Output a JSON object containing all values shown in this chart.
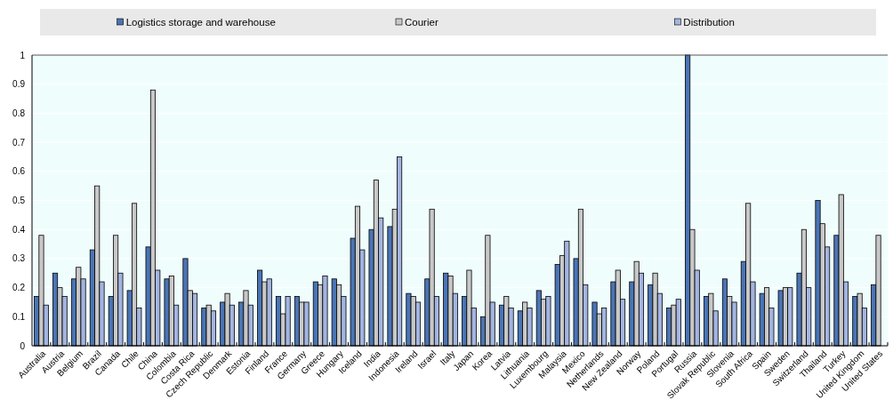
{
  "chart_data": {
    "type": "bar",
    "categories": [
      "Australia",
      "Austria",
      "Belgium",
      "Brazil",
      "Canada",
      "Chile",
      "China",
      "Colombia",
      "Costa Rica",
      "Czech Republic",
      "Denmark",
      "Estonia",
      "Finland",
      "France",
      "Germany",
      "Greece",
      "Hungary",
      "Iceland",
      "India",
      "Indonesia",
      "Ireland",
      "Israel",
      "Italy",
      "Japan",
      "Korea",
      "Latvia",
      "Lithuania",
      "Luxembourg",
      "Malaysia",
      "Mexico",
      "Netherlands",
      "New Zealand",
      "Norway",
      "Poland",
      "Portugal",
      "Russia",
      "Slovak Republic",
      "Slovenia",
      "South Africa",
      "Spain",
      "Sweden",
      "Switzerland",
      "Thailand",
      "Turkey",
      "United Kingdom",
      "United States"
    ],
    "series": [
      {
        "name": "Logistics storage and warehouse",
        "color": "#4a74b5",
        "values": [
          0.17,
          0.25,
          0.23,
          0.33,
          0.17,
          0.19,
          0.34,
          0.23,
          0.3,
          0.13,
          0.15,
          0.15,
          0.26,
          0.17,
          0.17,
          0.22,
          0.23,
          0.37,
          0.4,
          0.41,
          0.18,
          0.23,
          0.25,
          0.17,
          0.1,
          0.14,
          0.12,
          0.19,
          0.28,
          0.3,
          0.15,
          0.22,
          0.22,
          0.21,
          0.13,
          1.0,
          0.17,
          0.23,
          0.29,
          0.18,
          0.19,
          0.25,
          0.5,
          0.38,
          0.17,
          0.21
        ]
      },
      {
        "name": "Courier",
        "color": "#c8c8c8",
        "values": [
          0.38,
          0.2,
          0.27,
          0.55,
          0.38,
          0.49,
          0.88,
          0.24,
          0.19,
          0.14,
          0.18,
          0.19,
          0.22,
          0.11,
          0.15,
          0.21,
          0.21,
          0.48,
          0.57,
          0.47,
          0.17,
          0.47,
          0.24,
          0.26,
          0.38,
          0.17,
          0.15,
          0.16,
          0.31,
          0.47,
          0.11,
          0.26,
          0.29,
          0.25,
          0.14,
          0.4,
          0.18,
          0.17,
          0.49,
          0.2,
          0.2,
          0.4,
          0.42,
          0.52,
          0.18,
          0.38
        ]
      },
      {
        "name": "Distribution",
        "color": "#a3b4e0",
        "values": [
          0.14,
          0.17,
          0.23,
          0.22,
          0.25,
          0.13,
          0.26,
          0.14,
          0.18,
          0.12,
          0.14,
          0.14,
          0.23,
          0.17,
          0.15,
          0.24,
          0.17,
          0.33,
          0.44,
          0.65,
          0.15,
          0.17,
          0.18,
          0.13,
          0.15,
          0.13,
          0.13,
          0.17,
          0.36,
          0.21,
          0.13,
          0.16,
          0.25,
          0.18,
          0.16,
          0.26,
          0.12,
          0.15,
          0.22,
          0.13,
          0.2,
          0.2,
          0.34,
          0.22,
          0.13,
          null
        ]
      }
    ],
    "ylim": [
      0,
      1
    ],
    "yticks": [
      0,
      0.1,
      0.2,
      0.3,
      0.4,
      0.5,
      0.6,
      0.7,
      0.8,
      0.9,
      1
    ],
    "grid": "y",
    "legend": "top"
  }
}
